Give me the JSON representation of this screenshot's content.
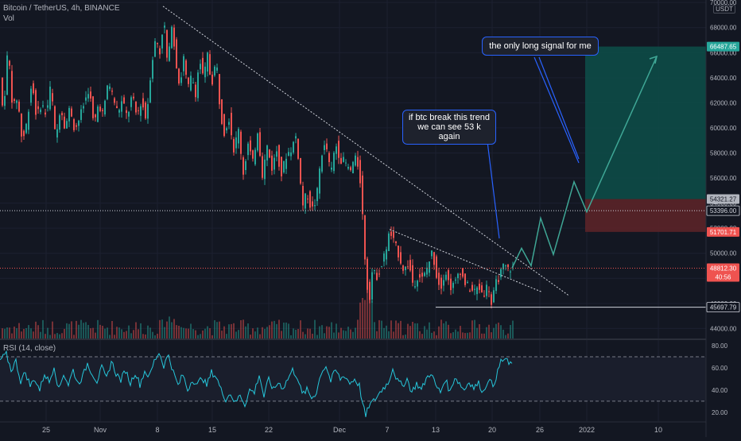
{
  "header": {
    "title": "Bitcoin / TetherUS, 4h, BINANCE",
    "volume_label": "Vol",
    "rsi_label": "RSI (14, close)",
    "currency": "USDT"
  },
  "annotations": {
    "note1_line1": "if btc break this trend",
    "note1_line2": "we can see 53 k again",
    "note2": "the only long signal for me"
  },
  "colors": {
    "background": "#131722",
    "up": "#26a69a",
    "down": "#ef5350",
    "rsi_line": "#26c6da",
    "trendline": "#d1d4dc",
    "projection": "#3fa796",
    "target_zone": "#0d4f49",
    "stop_zone": "#5b2328",
    "note_border": "#2962ff"
  },
  "chart_data": {
    "type": "candlestick",
    "symbol": "Bitcoin / TetherUS",
    "interval": "4h",
    "exchange": "BINANCE",
    "price_axis": {
      "ticks": [
        "70000.00",
        "68000.00",
        "66000.00",
        "64000.00",
        "62000.00",
        "60000.00",
        "58000.00",
        "56000.00",
        "54000.00",
        "52000.00",
        "50000.00",
        "48000.00",
        "46000.00",
        "44000.00"
      ],
      "range": [
        43200,
        70200
      ]
    },
    "time_axis": {
      "ticks": [
        "25",
        "Nov",
        "8",
        "15",
        "22",
        "Dec",
        "7",
        "13",
        "20",
        "26",
        "2022",
        "10"
      ]
    },
    "price_labels": [
      {
        "text": "66487.65",
        "kind": "target"
      },
      {
        "text": "54321.27",
        "kind": "entry"
      },
      {
        "text": "53396.00",
        "kind": "level"
      },
      {
        "text": "51701.71",
        "kind": "stop"
      },
      {
        "text": "48812.30",
        "kind": "last"
      },
      {
        "text": "40:56",
        "kind": "countdown"
      },
      {
        "text": "45697.79",
        "kind": "support"
      }
    ],
    "levels": {
      "resistance": 53396,
      "support": 45698,
      "last": 48812
    },
    "trade_zone": {
      "target": 66487.65,
      "entry": 54321.27,
      "stop": 51701.71
    },
    "path": [
      [
        0,
        65500
      ],
      [
        6,
        61000
      ],
      [
        12,
        66500
      ],
      [
        18,
        61500
      ],
      [
        24,
        62500
      ],
      [
        30,
        58800
      ],
      [
        36,
        60500
      ],
      [
        42,
        63800
      ],
      [
        48,
        60800
      ],
      [
        54,
        62000
      ],
      [
        60,
        61000
      ],
      [
        66,
        63500
      ],
      [
        72,
        58900
      ],
      [
        78,
        61800
      ],
      [
        84,
        60000
      ],
      [
        90,
        61700
      ],
      [
        96,
        59800
      ],
      [
        102,
        60800
      ],
      [
        108,
        62000
      ],
      [
        114,
        63200
      ],
      [
        120,
        60100
      ],
      [
        126,
        62000
      ],
      [
        132,
        61000
      ],
      [
        138,
        63800
      ],
      [
        144,
        62500
      ],
      [
        150,
        61200
      ],
      [
        156,
        62200
      ],
      [
        162,
        60800
      ],
      [
        168,
        62600
      ],
      [
        174,
        60900
      ],
      [
        180,
        62200
      ],
      [
        186,
        60600
      ],
      [
        192,
        64800
      ],
      [
        198,
        67200
      ],
      [
        203,
        66000
      ],
      [
        208,
        68800
      ],
      [
        213,
        64700
      ],
      [
        218,
        68400
      ],
      [
        223,
        65500
      ],
      [
        228,
        63200
      ],
      [
        233,
        65600
      ],
      [
        238,
        63000
      ],
      [
        243,
        64200
      ],
      [
        248,
        62800
      ],
      [
        253,
        65500
      ],
      [
        258,
        63800
      ],
      [
        263,
        65800
      ],
      [
        268,
        63400
      ],
      [
        274,
        65500
      ],
      [
        279,
        61300
      ],
      [
        284,
        59700
      ],
      [
        290,
        60800
      ],
      [
        296,
        58300
      ],
      [
        302,
        59800
      ],
      [
        308,
        56400
      ],
      [
        314,
        58700
      ],
      [
        320,
        57200
      ],
      [
        326,
        59800
      ],
      [
        332,
        56300
      ],
      [
        338,
        58500
      ],
      [
        344,
        56800
      ],
      [
        350,
        58200
      ],
      [
        356,
        56300
      ],
      [
        362,
        57800
      ],
      [
        368,
        58300
      ],
      [
        374,
        59300
      ],
      [
        378,
        57300
      ],
      [
        382,
        53700
      ],
      [
        388,
        54800
      ],
      [
        394,
        53400
      ],
      [
        400,
        54300
      ],
      [
        406,
        57900
      ],
      [
        412,
        58700
      ],
      [
        418,
        56200
      ],
      [
        424,
        58800
      ],
      [
        430,
        57500
      ],
      [
        436,
        57300
      ],
      [
        442,
        56400
      ],
      [
        448,
        57600
      ],
      [
        454,
        56800
      ],
      [
        458,
        53000
      ],
      [
        462,
        48600
      ],
      [
        466,
        46000
      ],
      [
        470,
        48500
      ],
      [
        476,
        48200
      ],
      [
        482,
        49000
      ],
      [
        488,
        50500
      ],
      [
        492,
        51700
      ],
      [
        498,
        50800
      ],
      [
        504,
        49800
      ],
      [
        510,
        48600
      ],
      [
        516,
        49200
      ],
      [
        522,
        47400
      ],
      [
        528,
        48300
      ],
      [
        534,
        47900
      ],
      [
        540,
        49000
      ],
      [
        546,
        50200
      ],
      [
        550,
        48500
      ],
      [
        556,
        47200
      ],
      [
        562,
        48700
      ],
      [
        568,
        47300
      ],
      [
        574,
        47500
      ],
      [
        580,
        48800
      ],
      [
        586,
        47700
      ],
      [
        592,
        47200
      ],
      [
        598,
        46900
      ],
      [
        604,
        47300
      ],
      [
        610,
        46700
      ],
      [
        616,
        47600
      ],
      [
        620,
        45900
      ],
      [
        626,
        47600
      ],
      [
        630,
        48200
      ],
      [
        636,
        49000
      ],
      [
        640,
        48700
      ],
      [
        644,
        48812
      ]
    ],
    "projection": [
      [
        644,
        48812
      ],
      [
        656,
        50400
      ],
      [
        668,
        49000
      ],
      [
        680,
        52800
      ],
      [
        696,
        49900
      ],
      [
        722,
        55700
      ],
      [
        738,
        53300
      ],
      [
        826,
        65700
      ]
    ],
    "rsi": {
      "ticks": [
        "80.00",
        "60.00",
        "40.00",
        "20.00"
      ],
      "range": [
        12,
        85
      ],
      "upper_band": 70,
      "lower_band": 30,
      "points": [
        [
          0,
          67
        ],
        [
          8,
          72
        ],
        [
          14,
          58
        ],
        [
          20,
          66
        ],
        [
          26,
          48
        ],
        [
          32,
          56
        ],
        [
          38,
          44
        ],
        [
          44,
          50
        ],
        [
          50,
          40
        ],
        [
          56,
          55
        ],
        [
          62,
          47
        ],
        [
          68,
          62
        ],
        [
          74,
          40
        ],
        [
          80,
          55
        ],
        [
          86,
          45
        ],
        [
          92,
          58
        ],
        [
          98,
          46
        ],
        [
          104,
          52
        ],
        [
          110,
          64
        ],
        [
          116,
          55
        ],
        [
          122,
          48
        ],
        [
          128,
          60
        ],
        [
          134,
          50
        ],
        [
          140,
          66
        ],
        [
          146,
          55
        ],
        [
          152,
          49
        ],
        [
          158,
          58
        ],
        [
          164,
          46
        ],
        [
          170,
          56
        ],
        [
          176,
          45
        ],
        [
          182,
          57
        ],
        [
          188,
          52
        ],
        [
          194,
          66
        ],
        [
          200,
          74
        ],
        [
          206,
          62
        ],
        [
          212,
          72
        ],
        [
          218,
          56
        ],
        [
          224,
          44
        ],
        [
          230,
          54
        ],
        [
          236,
          40
        ],
        [
          242,
          50
        ],
        [
          248,
          44
        ],
        [
          254,
          52
        ],
        [
          260,
          44
        ],
        [
          266,
          56
        ],
        [
          272,
          52
        ],
        [
          278,
          40
        ],
        [
          284,
          32
        ],
        [
          290,
          37
        ],
        [
          296,
          28
        ],
        [
          302,
          36
        ],
        [
          308,
          27
        ],
        [
          314,
          40
        ],
        [
          320,
          38
        ],
        [
          326,
          54
        ],
        [
          332,
          34
        ],
        [
          338,
          50
        ],
        [
          344,
          40
        ],
        [
          350,
          47
        ],
        [
          356,
          42
        ],
        [
          362,
          50
        ],
        [
          368,
          58
        ],
        [
          374,
          52
        ],
        [
          380,
          36
        ],
        [
          386,
          40
        ],
        [
          392,
          33
        ],
        [
          398,
          38
        ],
        [
          404,
          56
        ],
        [
          410,
          62
        ],
        [
          416,
          48
        ],
        [
          422,
          58
        ],
        [
          428,
          50
        ],
        [
          434,
          53
        ],
        [
          440,
          46
        ],
        [
          446,
          50
        ],
        [
          452,
          44
        ],
        [
          456,
          28
        ],
        [
          460,
          16
        ],
        [
          464,
          26
        ],
        [
          470,
          30
        ],
        [
          476,
          36
        ],
        [
          482,
          42
        ],
        [
          488,
          46
        ],
        [
          494,
          60
        ],
        [
          500,
          48
        ],
        [
          506,
          44
        ],
        [
          512,
          50
        ],
        [
          518,
          38
        ],
        [
          524,
          46
        ],
        [
          530,
          40
        ],
        [
          536,
          50
        ],
        [
          542,
          56
        ],
        [
          548,
          44
        ],
        [
          554,
          38
        ],
        [
          560,
          50
        ],
        [
          566,
          38
        ],
        [
          572,
          52
        ],
        [
          578,
          46
        ],
        [
          584,
          40
        ],
        [
          590,
          48
        ],
        [
          596,
          42
        ],
        [
          602,
          46
        ],
        [
          608,
          38
        ],
        [
          614,
          50
        ],
        [
          620,
          44
        ],
        [
          626,
          56
        ],
        [
          630,
          66
        ],
        [
          636,
          68
        ],
        [
          640,
          63
        ],
        [
          644,
          64
        ]
      ]
    }
  }
}
